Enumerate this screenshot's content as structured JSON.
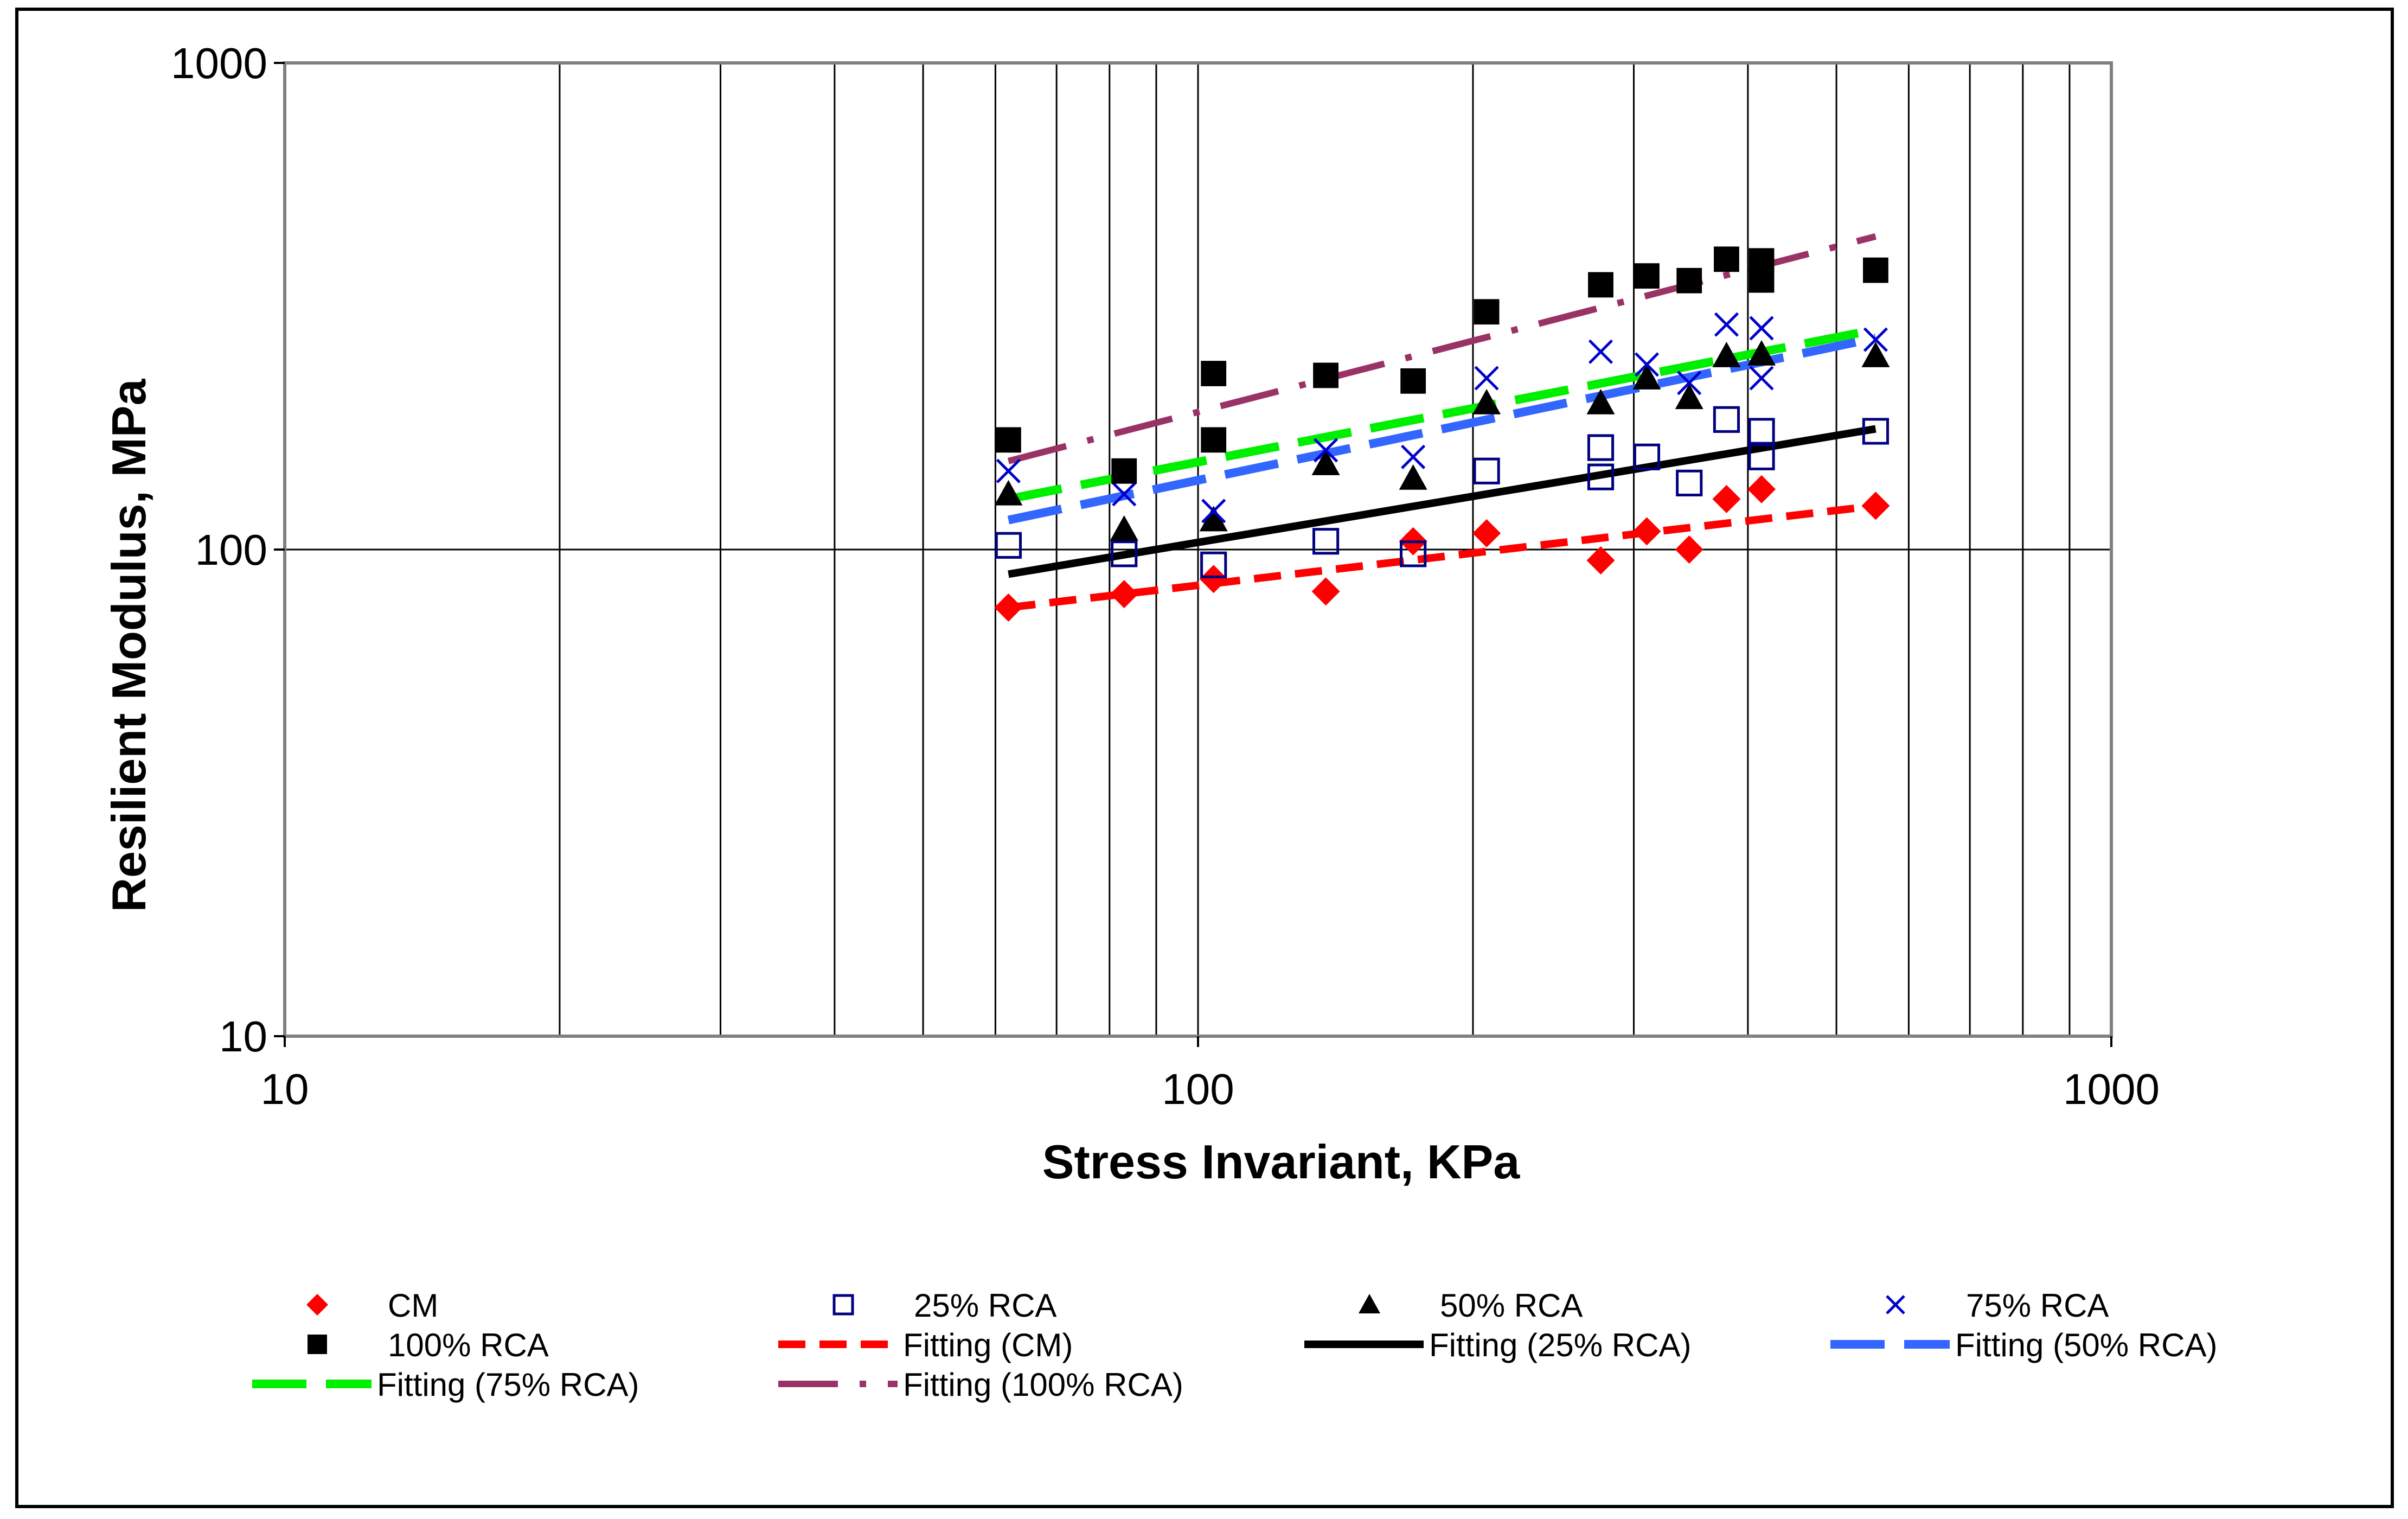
{
  "chart_data": {
    "type": "scatter",
    "xscale": "log",
    "yscale": "log",
    "xlabel": "Stress Invariant, KPa",
    "ylabel": "Resilient Modulus, MPa",
    "xlim": [
      10,
      1000
    ],
    "ylim": [
      10,
      1000
    ],
    "xticks": [
      10,
      100,
      1000
    ],
    "yticks": [
      10,
      100,
      1000
    ],
    "xtick_labels": [
      "10",
      "100",
      "1000"
    ],
    "ytick_labels": [
      "10",
      "100",
      "1000"
    ],
    "grid": true,
    "legend_position": "bottom",
    "series": [
      {
        "name": "CM",
        "kind": "points",
        "marker": "diamond",
        "color": "#ff0000",
        "x": [
          62,
          83,
          104,
          138,
          172,
          207,
          276,
          310,
          345,
          379,
          414,
          552
        ],
        "y": [
          76,
          81,
          87,
          82,
          104,
          108,
          95,
          109,
          100,
          127,
          133,
          123
        ]
      },
      {
        "name": "25% RCA",
        "kind": "points",
        "marker": "open-square",
        "color": "#000080",
        "x": [
          62,
          83,
          104,
          138,
          172,
          207,
          276,
          276,
          310,
          345,
          379,
          414,
          414,
          552
        ],
        "y": [
          102,
          98,
          93,
          104,
          98,
          145,
          162,
          141,
          155,
          137,
          185,
          175,
          155,
          175
        ]
      },
      {
        "name": "50% RCA",
        "kind": "points",
        "marker": "triangle",
        "color": "#000000",
        "x": [
          62,
          83,
          104,
          138,
          172,
          207,
          276,
          310,
          345,
          379,
          414,
          552
        ],
        "y": [
          130,
          110,
          115,
          150,
          140,
          200,
          200,
          225,
          205,
          250,
          252,
          250
        ]
      },
      {
        "name": "75% RCA",
        "kind": "points",
        "marker": "x",
        "color": "#0000cc",
        "x": [
          62,
          83,
          104,
          138,
          172,
          207,
          276,
          310,
          345,
          379,
          414,
          414,
          552
        ],
        "y": [
          145,
          130,
          120,
          160,
          155,
          225,
          255,
          240,
          220,
          290,
          285,
          225,
          270
        ]
      },
      {
        "name": "100% RCA",
        "kind": "points",
        "marker": "square",
        "color": "#000000",
        "x": [
          62,
          83,
          104,
          104,
          138,
          172,
          207,
          276,
          310,
          345,
          379,
          414,
          414,
          552
        ],
        "y": [
          168,
          145,
          230,
          168,
          228,
          222,
          308,
          350,
          365,
          357,
          395,
          392,
          358,
          375
        ]
      },
      {
        "name": "Fitting (CM)",
        "kind": "line",
        "style": "dashed",
        "color": "#ff0000",
        "x": [
          62,
          552
        ],
        "y": [
          76,
          123
        ]
      },
      {
        "name": "Fitting (25% RCA)",
        "kind": "line",
        "style": "solid",
        "color": "#000000",
        "x": [
          62,
          552
        ],
        "y": [
          89,
          177
        ]
      },
      {
        "name": "Fitting (50% RCA)",
        "kind": "line",
        "style": "long-dash",
        "color": "#3366ff",
        "x": [
          62,
          552
        ],
        "y": [
          115,
          272
        ]
      },
      {
        "name": "Fitting (75% RCA)",
        "kind": "line",
        "style": "long-dash",
        "color": "#00ee00",
        "x": [
          62,
          552
        ],
        "y": [
          127,
          283
        ]
      },
      {
        "name": "Fitting (100% RCA)",
        "kind": "line",
        "style": "dash-dot",
        "color": "#993366",
        "x": [
          62,
          552
        ],
        "y": [
          152,
          440
        ]
      }
    ]
  }
}
